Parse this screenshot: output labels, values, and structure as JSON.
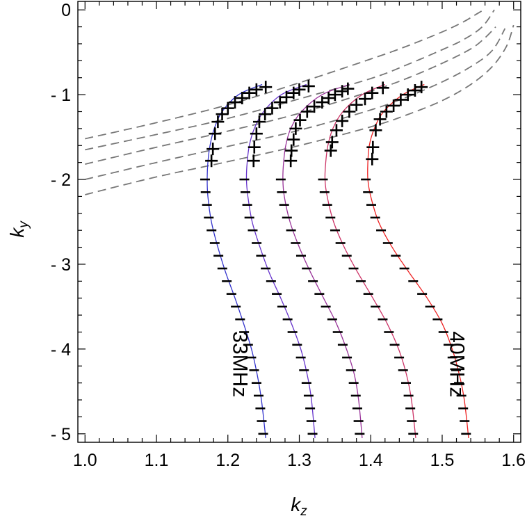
{
  "chart_data": {
    "type": "line",
    "title": "",
    "xlabel": {
      "base": "k",
      "sub": "z"
    },
    "ylabel": {
      "base": "k",
      "sub": "y"
    },
    "xlim": [
      0.99,
      1.61
    ],
    "ylim": [
      -5.1,
      0.1
    ],
    "xticks": [
      1.0,
      1.1,
      1.2,
      1.3,
      1.4,
      1.5,
      1.6
    ],
    "xtick_labels": [
      "1.0",
      "1.1",
      "1.2",
      "1.3",
      "1.4",
      "1.5",
      "1.6"
    ],
    "yticks": [
      0,
      -1,
      -2,
      -3,
      -4,
      -5
    ],
    "ytick_labels": [
      "0",
      "- 1",
      "- 2",
      "- 3",
      "- 4",
      "- 5"
    ],
    "grid": false,
    "series": [
      {
        "color": "#3333cc",
        "y": [
          -0.88,
          -1.0,
          -1.2,
          -1.4,
          -1.6,
          -1.8,
          -2.0,
          -2.2,
          -2.5,
          -2.8,
          -3.1,
          -3.4,
          -3.7,
          -4.0,
          -4.3,
          -4.6,
          -5.05
        ],
        "x": [
          1.248,
          1.215,
          1.192,
          1.181,
          1.175,
          1.172,
          1.171,
          1.172,
          1.177,
          1.186,
          1.197,
          1.21,
          1.222,
          1.233,
          1.241,
          1.247,
          1.253
        ]
      },
      {
        "color": "#6633cc",
        "y": [
          -0.88,
          -1.0,
          -1.2,
          -1.4,
          -1.6,
          -1.8,
          -2.0,
          -2.2,
          -2.5,
          -2.8,
          -3.1,
          -3.4,
          -3.7,
          -4.0,
          -4.3,
          -4.6,
          -5.05
        ],
        "x": [
          1.31,
          1.275,
          1.25,
          1.237,
          1.23,
          1.227,
          1.226,
          1.228,
          1.234,
          1.245,
          1.258,
          1.274,
          1.289,
          1.302,
          1.311,
          1.317,
          1.322
        ]
      },
      {
        "color": "#993399",
        "y": [
          -0.88,
          -1.0,
          -1.2,
          -1.4,
          -1.6,
          -1.8,
          -2.0,
          -2.2,
          -2.5,
          -2.8,
          -3.1,
          -3.4,
          -3.7,
          -4.0,
          -4.3,
          -4.6,
          -5.05
        ],
        "x": [
          1.37,
          1.332,
          1.303,
          1.288,
          1.281,
          1.278,
          1.277,
          1.279,
          1.287,
          1.3,
          1.316,
          1.334,
          1.352,
          1.366,
          1.377,
          1.383,
          1.388
        ]
      },
      {
        "color": "#cc3366",
        "y": [
          -0.88,
          -1.0,
          -1.2,
          -1.4,
          -1.6,
          -1.8,
          -2.0,
          -2.2,
          -2.5,
          -2.8,
          -3.1,
          -3.4,
          -3.7,
          -4.0,
          -4.3,
          -4.6,
          -5.05
        ],
        "x": [
          1.42,
          1.388,
          1.361,
          1.347,
          1.34,
          1.337,
          1.336,
          1.339,
          1.348,
          1.363,
          1.382,
          1.403,
          1.423,
          1.439,
          1.45,
          1.457,
          1.463
        ]
      },
      {
        "color": "#ee2222",
        "y": [
          -0.88,
          -1.0,
          -1.2,
          -1.4,
          -1.6,
          -1.8,
          -2.0,
          -2.2,
          -2.5,
          -2.8,
          -3.1,
          -3.4,
          -3.7,
          -4.0,
          -4.3,
          -4.6,
          -5.05
        ],
        "x": [
          1.475,
          1.445,
          1.418,
          1.405,
          1.398,
          1.396,
          1.396,
          1.4,
          1.411,
          1.43,
          1.454,
          1.479,
          1.5,
          1.514,
          1.524,
          1.531,
          1.537
        ]
      }
    ],
    "dashed_curves": {
      "color": "#777777",
      "curves": [
        {
          "x": [
            1.0,
            1.1,
            1.2,
            1.3,
            1.4,
            1.45,
            1.5,
            1.53,
            1.548,
            1.558
          ],
          "y": [
            -1.52,
            -1.33,
            -1.12,
            -0.86,
            -0.58,
            -0.43,
            -0.26,
            -0.14,
            -0.05,
            0.0
          ]
        },
        {
          "x": [
            1.0,
            1.1,
            1.2,
            1.3,
            1.4,
            1.45,
            1.5,
            1.53,
            1.556,
            1.573
          ],
          "y": [
            -1.65,
            -1.47,
            -1.28,
            -1.05,
            -0.81,
            -0.65,
            -0.47,
            -0.35,
            -0.2,
            0.0
          ]
        },
        {
          "x": [
            1.0,
            1.1,
            1.2,
            1.3,
            1.4,
            1.45,
            1.5,
            1.54,
            1.56,
            1.575
          ],
          "y": [
            -1.82,
            -1.62,
            -1.43,
            -1.22,
            -0.96,
            -0.81,
            -0.63,
            -0.46,
            -0.33,
            -0.2
          ]
        },
        {
          "x": [
            1.0,
            1.1,
            1.2,
            1.3,
            1.4,
            1.45,
            1.5,
            1.54,
            1.57,
            1.588
          ],
          "y": [
            -2.0,
            -1.8,
            -1.61,
            -1.42,
            -1.18,
            -1.03,
            -0.85,
            -0.67,
            -0.48,
            -0.22
          ]
        },
        {
          "x": [
            1.0,
            1.1,
            1.2,
            1.3,
            1.4,
            1.45,
            1.5,
            1.54,
            1.57,
            1.59,
            1.6
          ],
          "y": [
            -2.18,
            -1.97,
            -1.79,
            -1.6,
            -1.38,
            -1.24,
            -1.07,
            -0.88,
            -0.67,
            -0.43,
            -0.18
          ]
        }
      ]
    },
    "plus_markers": [
      {
        "x": [
          1.253,
          1.24,
          1.23,
          1.22,
          1.21,
          1.2,
          1.192,
          1.186,
          1.182,
          1.179,
          1.177
        ],
        "y": [
          -0.91,
          -0.94,
          -0.98,
          -1.04,
          -1.09,
          -1.16,
          -1.23,
          -1.32,
          -1.46,
          -1.64,
          -1.78
        ]
      },
      {
        "x": [
          1.313,
          1.3,
          1.292,
          1.282,
          1.273,
          1.262,
          1.252,
          1.244,
          1.24,
          1.237,
          1.236
        ],
        "y": [
          -0.9,
          -0.94,
          -0.98,
          -1.03,
          -1.09,
          -1.16,
          -1.23,
          -1.32,
          -1.46,
          -1.62,
          -1.78
        ]
      },
      {
        "x": [
          1.368,
          1.36,
          1.35,
          1.341,
          1.332,
          1.321,
          1.311,
          1.301,
          1.295,
          1.292,
          1.289,
          1.288
        ],
        "y": [
          -0.93,
          -0.96,
          -1.0,
          -1.04,
          -1.09,
          -1.14,
          -1.2,
          -1.3,
          -1.4,
          -1.53,
          -1.66,
          -1.78
        ]
      },
      {
        "x": [
          1.417,
          1.402,
          1.392,
          1.38,
          1.37,
          1.36,
          1.352,
          1.346,
          1.344
        ],
        "y": [
          -0.92,
          -0.98,
          -1.05,
          -1.12,
          -1.2,
          -1.31,
          -1.42,
          -1.56,
          -1.66
        ]
      },
      {
        "x": [
          1.471,
          1.462,
          1.452,
          1.442,
          1.432,
          1.422,
          1.413,
          1.407,
          1.403,
          1.402
        ],
        "y": [
          -0.91,
          -0.95,
          -1.0,
          -1.06,
          -1.13,
          -1.2,
          -1.29,
          -1.42,
          -1.62,
          -1.76
        ]
      }
    ],
    "minus_markers_y": [
      -2.0,
      -2.15,
      -2.3,
      -2.45,
      -2.6,
      -2.75,
      -2.9,
      -3.05,
      -3.2,
      -3.35,
      -3.5,
      -3.65,
      -3.8,
      -3.95,
      -4.1,
      -4.25,
      -4.4,
      -4.55,
      -4.7,
      -4.85,
      -5.0
    ],
    "annotations": [
      {
        "text": "33MHz",
        "x": 1.215,
        "y": -4.18,
        "rotation": 90
      },
      {
        "text": "40MHz",
        "x": 1.519,
        "y": -4.18,
        "rotation": 90
      }
    ]
  }
}
